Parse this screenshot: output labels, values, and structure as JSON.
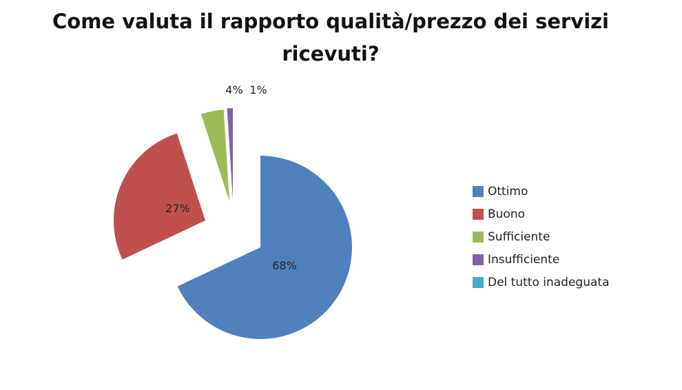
{
  "chart_data": {
    "type": "pie",
    "title": "Come valuta il rapporto qualità/prezzo dei servizi ricevuti?",
    "exploded": true,
    "legend_position": "right",
    "categories": [
      "Ottimo",
      "Buono",
      "Sufficiente",
      "Insufficiente",
      "Del tutto inadeguata"
    ],
    "values": [
      68,
      27,
      4,
      1,
      0
    ],
    "data_labels": [
      "68%",
      "27%",
      "4%",
      "1%",
      ""
    ],
    "colors": [
      "#4F81BD",
      "#C0504D",
      "#9BBB59",
      "#8064A2",
      "#4BACC6"
    ]
  }
}
